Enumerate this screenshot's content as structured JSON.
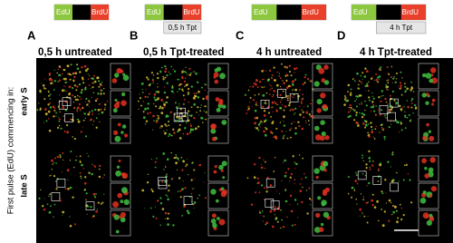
{
  "side_label": "First pulse (EdU) commencing in:",
  "rows": [
    "early S",
    "late S"
  ],
  "panels": [
    {
      "letter": "A",
      "title": "0,5 h untreated",
      "pulse1": "EdU",
      "pulse2": "BrdU"
    },
    {
      "letter": "B",
      "title": "0,5 h Tpt-treated",
      "pulse1": "EdU",
      "pulse2": "BrdU",
      "treatment": "0,5 h Tpt"
    },
    {
      "letter": "C",
      "title": "4 h untreated",
      "pulse1": "EdU",
      "pulse2": "BrdU"
    },
    {
      "letter": "D",
      "title": "4 h Tpt-treated",
      "pulse1": "EdU",
      "pulse2": "BrdU",
      "treatment": "4 h Tpt"
    }
  ]
}
